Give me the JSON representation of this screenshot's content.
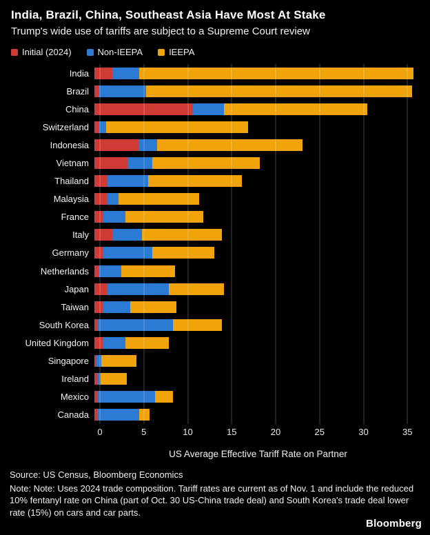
{
  "header": {
    "title": "India, Brazil, China, Southeast Asia Have Most At Stake",
    "subtitle": "Trump's wide use of tariffs are subject to a Supreme Court review"
  },
  "legend": [
    {
      "label": "Initial (2024)",
      "color": "#d03b36"
    },
    {
      "label": "Non-IEEPA",
      "color": "#2b7bd4"
    },
    {
      "label": "IEEPA",
      "color": "#f0a30a"
    }
  ],
  "chart_data": {
    "type": "bar",
    "orientation": "horizontal",
    "stacked": true,
    "title": "India, Brazil, China, Southeast Asia Have Most At Stake",
    "subtitle": "Trump's wide use of tariffs are subject to a Supreme Court review",
    "categories": [
      "India",
      "Brazil",
      "China",
      "Switzerland",
      "Indonesia",
      "Vietnam",
      "Thailand",
      "Malaysia",
      "France",
      "Italy",
      "Germany",
      "Netherlands",
      "Japan",
      "Taiwan",
      "South Korea",
      "United Kingdom",
      "Singapore",
      "Ireland",
      "Mexico",
      "Canada"
    ],
    "series": [
      {
        "name": "Initial (2024)",
        "color": "#d03b36",
        "values": [
          2.0,
          0.5,
          11.0,
          0.5,
          5.0,
          3.7,
          1.5,
          1.5,
          1.0,
          2.0,
          1.0,
          0.5,
          1.5,
          1.0,
          0.3,
          1.0,
          0.2,
          0.3,
          0.3,
          0.3
        ]
      },
      {
        "name": "Non-IEEPA",
        "color": "#2b7bd4",
        "values": [
          3.0,
          5.3,
          3.5,
          0.8,
          2.0,
          2.8,
          4.5,
          1.2,
          2.5,
          3.3,
          5.5,
          2.5,
          6.8,
          3.0,
          8.5,
          2.5,
          0.6,
          0.4,
          6.5,
          4.7
        ]
      },
      {
        "name": "IEEPA",
        "color": "#f0a30a",
        "values": [
          30.7,
          29.7,
          16.0,
          15.9,
          16.3,
          12.0,
          10.5,
          9.0,
          8.7,
          9.0,
          6.9,
          6.0,
          6.2,
          5.2,
          5.5,
          4.8,
          3.9,
          2.9,
          2.0,
          1.2
        ]
      }
    ],
    "xlabel": "US Average Effective Tariff Rate on Partner",
    "ylabel": "",
    "xlim": [
      0,
      36
    ],
    "xticks": [
      0,
      5,
      10,
      15,
      20,
      25,
      30,
      35
    ],
    "grid": true,
    "legend_position": "top"
  },
  "footer": {
    "source": "Source: US Census, Bloomberg Economics",
    "note": "Note: Note: Uses 2024 trade composition. Tariff rates are current as of Nov. 1 and include the reduced 10% fentanyl rate on China (part of Oct. 30 US-China trade deal) and South Korea's trade deal lower rate (15%) on cars and car parts.",
    "logo": "Bloomberg"
  }
}
